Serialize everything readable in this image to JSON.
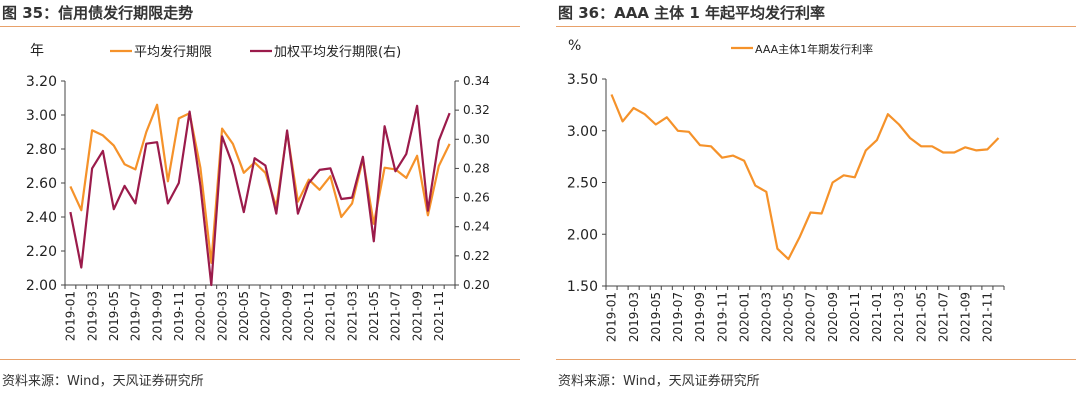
{
  "figures": [
    {
      "title": "图 35：信用债发行期限走势",
      "source": "资料来源：Wind，天风证券研究所"
    },
    {
      "title": "图 36：AAA 主体 1 年起平均发行利率",
      "source": "资料来源：Wind，天风证券研究所"
    }
  ],
  "colors": {
    "orange": "#f5922a",
    "maroon": "#9b1b4b",
    "axis": "#444444",
    "rule": "#e8a16a"
  },
  "chart_data": [
    {
      "type": "line",
      "title": "",
      "ylabel": "年",
      "x": [
        "2019-01",
        "2019-02",
        "2019-03",
        "2019-04",
        "2019-05",
        "2019-06",
        "2019-07",
        "2019-08",
        "2019-09",
        "2019-10",
        "2019-11",
        "2019-12",
        "2020-01",
        "2020-02",
        "2020-03",
        "2020-04",
        "2020-05",
        "2020-06",
        "2020-07",
        "2020-08",
        "2020-09",
        "2020-10",
        "2020-11",
        "2020-12",
        "2021-01",
        "2021-02",
        "2021-03",
        "2021-04",
        "2021-05",
        "2021-06",
        "2021-07",
        "2021-08",
        "2021-09",
        "2021-10",
        "2021-11",
        "2021-12"
      ],
      "xticks": [
        "2019-01",
        "2019-03",
        "2019-05",
        "2019-07",
        "2019-09",
        "2019-11",
        "2020-01",
        "2020-03",
        "2020-05",
        "2020-07",
        "2020-09",
        "2020-11",
        "2021-01",
        "2021-03",
        "2021-05",
        "2021-07",
        "2021-09",
        "2021-11"
      ],
      "ylim": [
        2.0,
        3.2
      ],
      "yticks": [
        "2.00",
        "2.20",
        "2.40",
        "2.60",
        "2.80",
        "3.00",
        "3.20"
      ],
      "y2lim": [
        0.2,
        0.34
      ],
      "y2ticks": [
        "0.20",
        "0.22",
        "0.24",
        "0.26",
        "0.28",
        "0.30",
        "0.32",
        "0.34"
      ],
      "legend_position": "top",
      "series": [
        {
          "name": "平均发行期限",
          "axis": "left",
          "color": "#f5922a",
          "values": [
            2.58,
            2.44,
            2.91,
            2.88,
            2.82,
            2.71,
            2.68,
            2.9,
            3.06,
            2.61,
            2.98,
            3.01,
            2.69,
            2.13,
            2.92,
            2.83,
            2.66,
            2.72,
            2.66,
            2.46,
            2.9,
            2.49,
            2.62,
            2.56,
            2.64,
            2.4,
            2.48,
            2.74,
            2.36,
            2.69,
            2.68,
            2.63,
            2.76,
            2.41,
            2.7,
            2.83
          ]
        },
        {
          "name": "加权平均发行期限(右)",
          "axis": "right",
          "color": "#9b1b4b",
          "values": [
            0.25,
            0.212,
            0.28,
            0.292,
            0.252,
            0.268,
            0.256,
            0.297,
            0.298,
            0.256,
            0.27,
            0.319,
            0.268,
            0.2,
            0.302,
            0.282,
            0.25,
            0.287,
            0.282,
            0.249,
            0.306,
            0.249,
            0.27,
            0.279,
            0.28,
            0.259,
            0.26,
            0.288,
            0.23,
            0.309,
            0.278,
            0.29,
            0.323,
            0.251,
            0.299,
            0.318
          ]
        }
      ]
    },
    {
      "type": "line",
      "title": "",
      "ylabel": "%",
      "x": [
        "2019-01",
        "2019-02",
        "2019-03",
        "2019-04",
        "2019-05",
        "2019-06",
        "2019-07",
        "2019-08",
        "2019-09",
        "2019-10",
        "2019-11",
        "2019-12",
        "2020-01",
        "2020-02",
        "2020-03",
        "2020-04",
        "2020-05",
        "2020-06",
        "2020-07",
        "2020-08",
        "2020-09",
        "2020-10",
        "2020-11",
        "2020-12",
        "2021-01",
        "2021-02",
        "2021-03",
        "2021-04",
        "2021-05",
        "2021-06",
        "2021-07",
        "2021-08",
        "2021-09",
        "2021-10",
        "2021-11",
        "2021-12"
      ],
      "xticks": [
        "2019-01",
        "2019-03",
        "2019-05",
        "2019-07",
        "2019-09",
        "2019-11",
        "2020-01",
        "2020-03",
        "2020-05",
        "2020-07",
        "2020-09",
        "2020-11",
        "2021-01",
        "2021-03",
        "2021-05",
        "2021-07",
        "2021-09",
        "2021-11"
      ],
      "ylim": [
        1.5,
        3.5
      ],
      "yticks": [
        "1.50",
        "2.00",
        "2.50",
        "3.00",
        "3.50"
      ],
      "legend_position": "top",
      "series": [
        {
          "name": "AAA主体1年期发行利率",
          "color": "#f5922a",
          "values": [
            3.35,
            3.09,
            3.22,
            3.16,
            3.06,
            3.13,
            3.0,
            2.99,
            2.86,
            2.85,
            2.74,
            2.76,
            2.71,
            2.47,
            2.41,
            1.86,
            1.76,
            1.97,
            2.21,
            2.2,
            2.5,
            2.57,
            2.55,
            2.81,
            2.91,
            3.16,
            3.06,
            2.93,
            2.85,
            2.85,
            2.79,
            2.79,
            2.84,
            2.81,
            2.82,
            2.93
          ]
        }
      ]
    }
  ]
}
